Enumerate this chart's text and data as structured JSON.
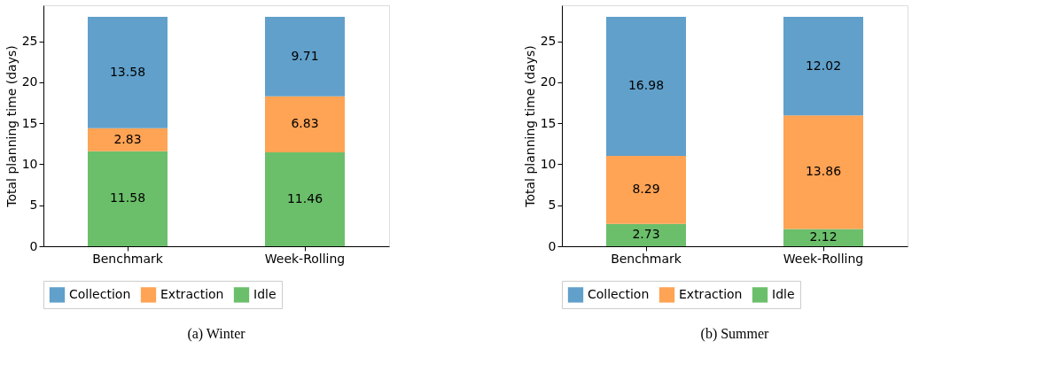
{
  "chart_data": [
    {
      "type": "bar",
      "stacked": true,
      "title": "(a) Winter",
      "categories": [
        "Benchmark",
        "Week-Rolling"
      ],
      "ylabel": "Total planning time (days)",
      "ylim": [
        0,
        29.4
      ],
      "yticks": [
        0,
        5,
        10,
        15,
        20,
        25
      ],
      "legend": "bottom",
      "data_labels": true,
      "grid": false,
      "series": [
        {
          "name": "Idle",
          "color": "#6bbf6b",
          "values": [
            11.58,
            11.46
          ]
        },
        {
          "name": "Extraction",
          "color": "#ffa354",
          "values": [
            2.83,
            6.83
          ]
        },
        {
          "name": "Collection",
          "color": "#60a0cb",
          "values": [
            13.58,
            9.71
          ]
        }
      ]
    },
    {
      "type": "bar",
      "stacked": true,
      "title": "(b) Summer",
      "categories": [
        "Benchmark",
        "Week-Rolling"
      ],
      "ylabel": "Total planning time (days)",
      "ylim": [
        0,
        29.4
      ],
      "yticks": [
        0,
        5,
        10,
        15,
        20,
        25
      ],
      "legend": "bottom",
      "data_labels": true,
      "grid": false,
      "series": [
        {
          "name": "Idle",
          "color": "#6bbf6b",
          "values": [
            2.73,
            2.12
          ]
        },
        {
          "name": "Extraction",
          "color": "#ffa354",
          "values": [
            8.29,
            13.86
          ]
        },
        {
          "name": "Collection",
          "color": "#60a0cb",
          "values": [
            16.98,
            12.02
          ]
        }
      ]
    }
  ]
}
